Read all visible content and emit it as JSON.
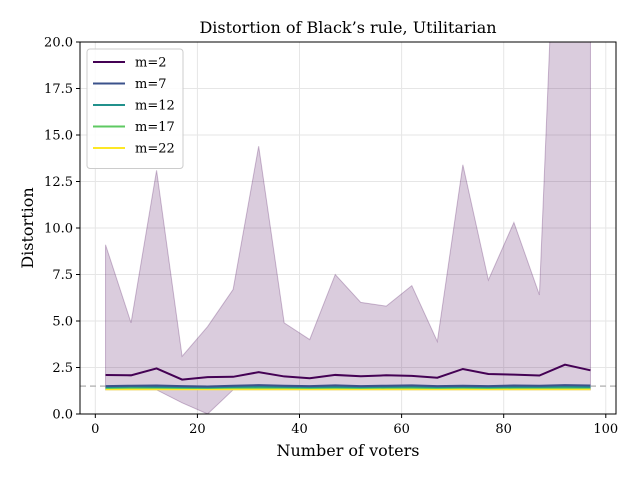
{
  "chart_data": {
    "type": "line",
    "title": "Distortion of Black’s rule, Utilitarian",
    "xlabel": "Number of voters",
    "ylabel": "Distortion",
    "xlim": [
      -3,
      102
    ],
    "ylim": [
      0,
      20
    ],
    "xticks": [
      0,
      20,
      40,
      60,
      80,
      100
    ],
    "yticks": [
      0.0,
      2.5,
      5.0,
      7.5,
      10.0,
      12.5,
      15.0,
      17.5,
      20.0
    ],
    "ytick_labels": [
      "0.0",
      "2.5",
      "5.0",
      "7.5",
      "10.0",
      "12.5",
      "15.0",
      "17.5",
      "20.0"
    ],
    "xtick_labels": [
      "0",
      "20",
      "40",
      "60",
      "80",
      "100"
    ],
    "grid": true,
    "legend_position": "top-left",
    "reference_line": {
      "y": 1.5,
      "style": "dashed",
      "color": "#bbbbbb"
    },
    "x": [
      2,
      7,
      12,
      17,
      22,
      27,
      32,
      37,
      42,
      47,
      52,
      57,
      62,
      67,
      72,
      77,
      82,
      87,
      92,
      97
    ],
    "series": [
      {
        "name": "m=2",
        "color": "#440154",
        "values": [
          2.1,
          2.08,
          2.45,
          1.85,
          1.98,
          2.0,
          2.25,
          2.02,
          1.92,
          2.1,
          2.03,
          2.08,
          2.05,
          1.95,
          2.42,
          2.15,
          2.12,
          2.07,
          2.65,
          2.35
        ],
        "band_upper": [
          9.1,
          4.9,
          13.1,
          3.1,
          4.7,
          6.7,
          14.4,
          4.9,
          4.0,
          7.5,
          6.0,
          5.8,
          6.9,
          3.9,
          13.4,
          7.2,
          10.3,
          6.4,
          40.0,
          40.0
        ],
        "band_lower": [
          1.3,
          1.3,
          1.3,
          0.6,
          0.0,
          1.3,
          1.3,
          1.3,
          1.3,
          1.3,
          1.3,
          1.3,
          1.3,
          1.3,
          1.3,
          1.3,
          1.3,
          1.3,
          1.3,
          1.3
        ]
      },
      {
        "name": "m=7",
        "color": "#3b528b",
        "values": [
          1.5,
          1.52,
          1.53,
          1.5,
          1.48,
          1.52,
          1.55,
          1.52,
          1.5,
          1.54,
          1.5,
          1.52,
          1.54,
          1.5,
          1.52,
          1.5,
          1.53,
          1.52,
          1.55,
          1.53
        ]
      },
      {
        "name": "m=12",
        "color": "#21918c",
        "values": [
          1.45,
          1.47,
          1.46,
          1.45,
          1.44,
          1.46,
          1.47,
          1.46,
          1.45,
          1.46,
          1.45,
          1.46,
          1.47,
          1.45,
          1.46,
          1.45,
          1.46,
          1.46,
          1.47,
          1.46
        ]
      },
      {
        "name": "m=17",
        "color": "#5ec962",
        "values": [
          1.4,
          1.41,
          1.41,
          1.4,
          1.4,
          1.41,
          1.41,
          1.41,
          1.4,
          1.41,
          1.4,
          1.41,
          1.41,
          1.4,
          1.41,
          1.4,
          1.41,
          1.41,
          1.41,
          1.41
        ]
      },
      {
        "name": "m=22",
        "color": "#fde725",
        "values": [
          1.33,
          1.33,
          1.33,
          1.33,
          1.33,
          1.33,
          1.33,
          1.33,
          1.33,
          1.33,
          1.33,
          1.33,
          1.33,
          1.33,
          1.33,
          1.33,
          1.33,
          1.33,
          1.33,
          1.33
        ]
      }
    ]
  }
}
